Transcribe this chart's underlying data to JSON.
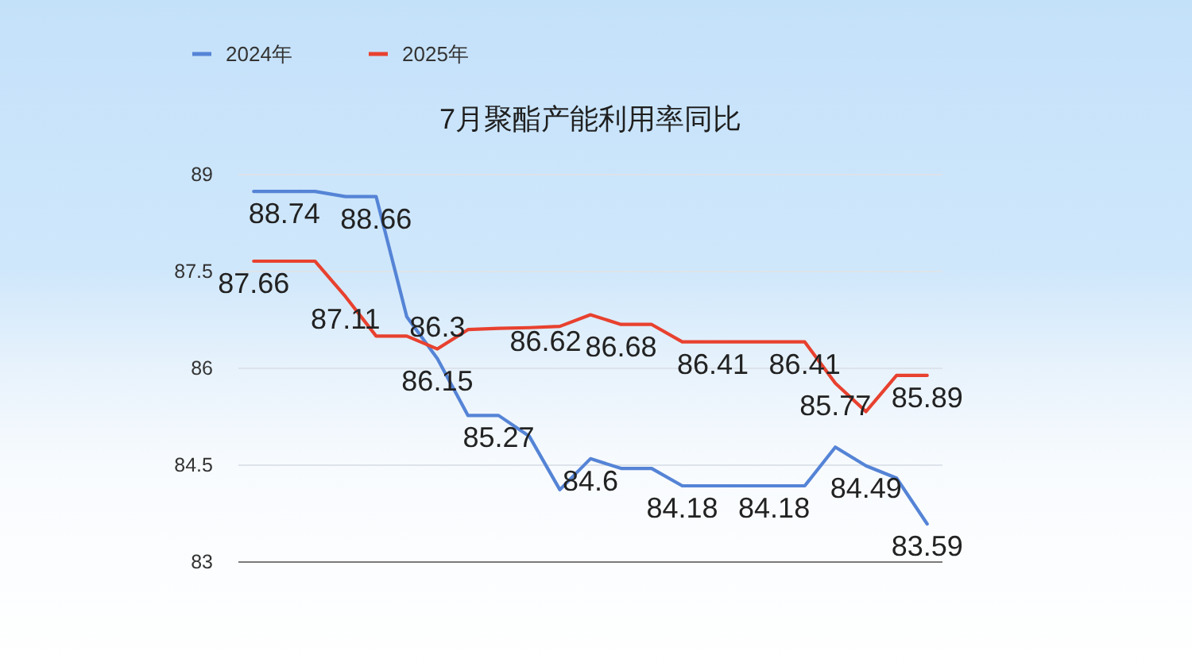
{
  "chart_data": {
    "type": "line",
    "title": "7月聚酯产能利用率同比",
    "categories": [
      null,
      null,
      null,
      null,
      null,
      null,
      null,
      null,
      null,
      null,
      null,
      null,
      null,
      null,
      null,
      null,
      null,
      null,
      null,
      null,
      null,
      null,
      null
    ],
    "series": [
      {
        "name": "2024年",
        "color": "#5584d6",
        "values": [
          88.74,
          88.74,
          88.74,
          88.66,
          88.66,
          86.8,
          86.15,
          85.27,
          85.27,
          84.95,
          84.12,
          84.6,
          84.45,
          84.45,
          84.18,
          84.18,
          84.18,
          84.18,
          84.18,
          84.78,
          84.49,
          84.3,
          83.59
        ],
        "value_labels": [
          null,
          "88.74",
          null,
          null,
          "88.66",
          null,
          "86.15",
          null,
          "85.27",
          null,
          null,
          "84.6",
          null,
          null,
          "84.18",
          null,
          null,
          "84.18",
          null,
          null,
          "84.49",
          null,
          "83.59"
        ]
      },
      {
        "name": "2025年",
        "color": "#e8412f",
        "values": [
          87.66,
          87.66,
          87.66,
          87.11,
          86.5,
          86.5,
          86.3,
          86.6,
          86.62,
          86.63,
          86.65,
          86.83,
          86.68,
          86.68,
          86.41,
          86.41,
          86.41,
          86.41,
          86.41,
          85.77,
          85.33,
          85.89,
          85.89
        ],
        "value_labels": [
          "87.66",
          null,
          null,
          "87.11",
          null,
          null,
          "86.3",
          null,
          "86.62",
          null,
          null,
          null,
          "86.68",
          null,
          null,
          "86.41",
          null,
          null,
          "86.41",
          "85.77",
          null,
          null,
          "85.89"
        ]
      }
    ],
    "ylim": [
      83,
      89
    ],
    "yticks": [
      83,
      84.5,
      86,
      87.5,
      89
    ],
    "grid": "y",
    "legend": "top left"
  }
}
